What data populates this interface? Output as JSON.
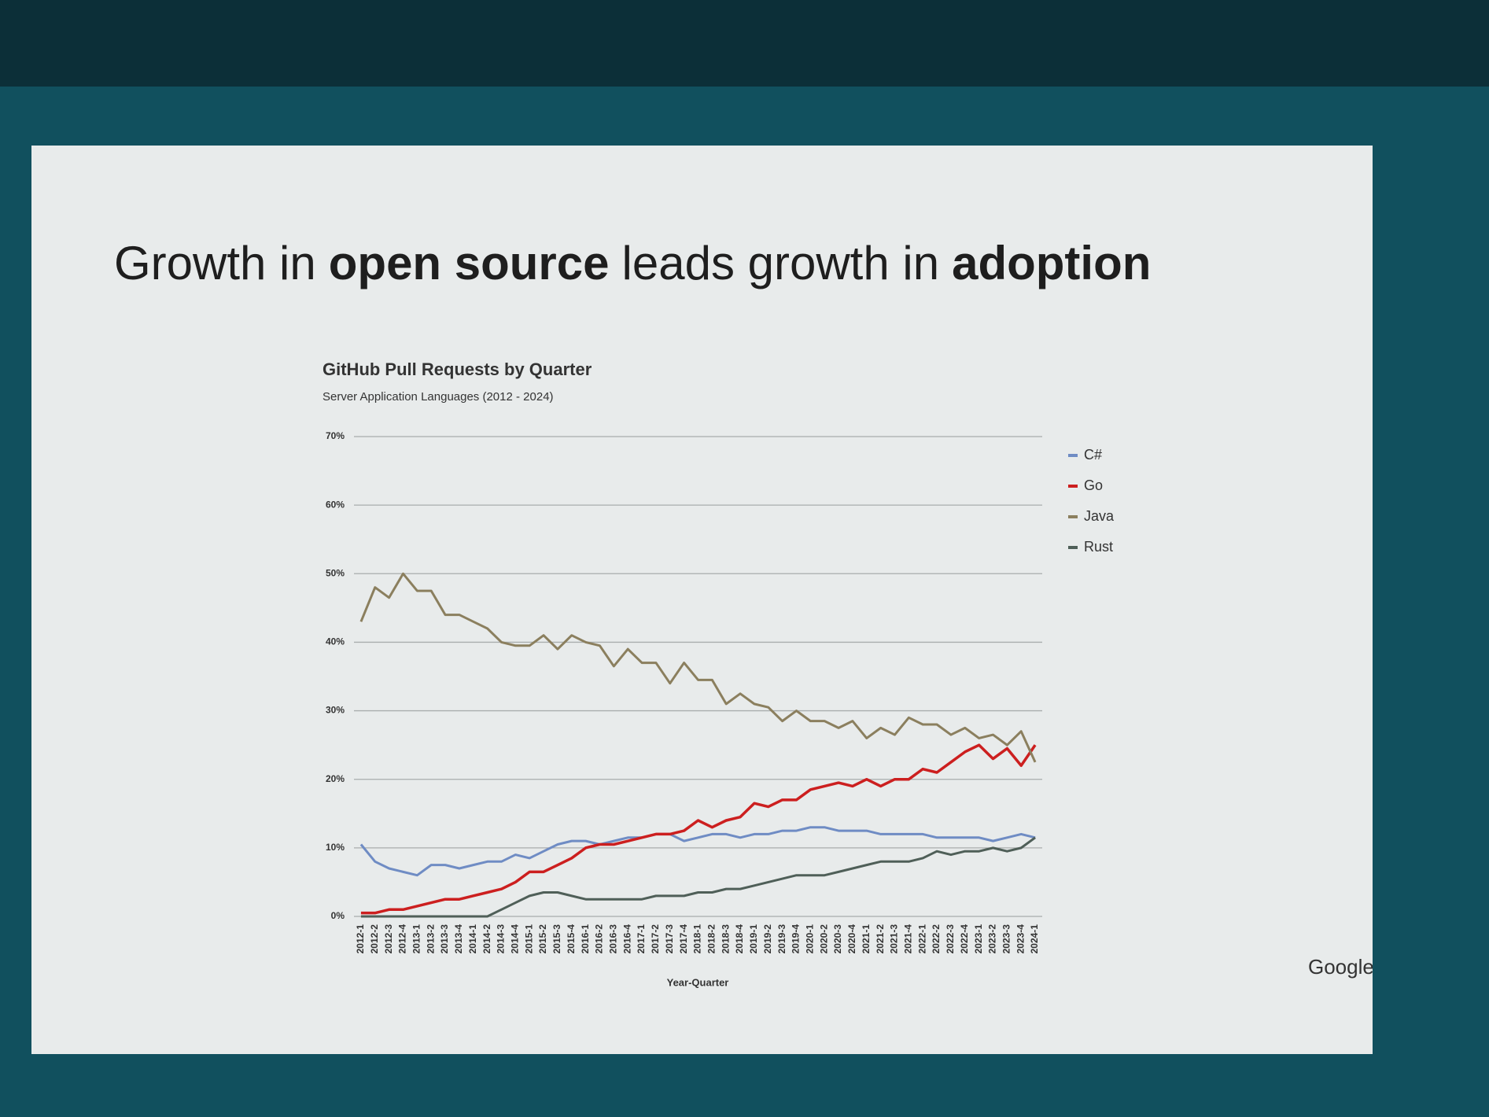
{
  "slide": {
    "title_parts": [
      {
        "text": "Growth in",
        "bold": false
      },
      {
        "text": "open source",
        "bold": true
      },
      {
        "text": "leads growth in",
        "bold": false
      },
      {
        "text": "adoption",
        "bold": true
      }
    ],
    "logo": "Google"
  },
  "chart_data": {
    "type": "line",
    "title": "GitHub Pull Requests by Quarter",
    "subtitle": "Server Application Languages (2012 - 2024)",
    "x_label": "Year-Quarter",
    "categories": [
      "2012-1",
      "2012-2",
      "2012-3",
      "2012-4",
      "2013-1",
      "2013-2",
      "2013-3",
      "2013-4",
      "2014-1",
      "2014-2",
      "2014-3",
      "2014-4",
      "2015-1",
      "2015-2",
      "2015-3",
      "2015-4",
      "2016-1",
      "2016-2",
      "2016-3",
      "2016-4",
      "2017-1",
      "2017-2",
      "2017-3",
      "2017-4",
      "2018-1",
      "2018-2",
      "2018-3",
      "2018-4",
      "2019-1",
      "2019-2",
      "2019-3",
      "2019-4",
      "2020-1",
      "2020-2",
      "2020-3",
      "2020-4",
      "2021-1",
      "2021-2",
      "2021-3",
      "2021-4",
      "2022-1",
      "2022-2",
      "2022-3",
      "2022-4",
      "2023-1",
      "2023-2",
      "2023-3",
      "2023-4",
      "2024-1"
    ],
    "series": [
      {
        "name": "C#",
        "color": "#6f8cc4",
        "values": [
          10.5,
          8,
          7,
          6.5,
          6,
          7.5,
          7.5,
          7,
          7.5,
          8,
          8,
          9,
          8.5,
          9.5,
          10.5,
          11,
          11,
          10.5,
          11,
          11.5,
          11.5,
          12,
          12,
          11,
          11.5,
          12,
          12,
          11.5,
          12,
          12,
          12.5,
          12.5,
          13,
          13,
          12.5,
          12.5,
          12.5,
          12,
          12,
          12,
          12,
          11.5,
          11.5,
          11.5,
          11.5,
          11,
          11.5,
          12,
          11.5
        ]
      },
      {
        "name": "Go",
        "color": "#cc1f1f",
        "values": [
          0.5,
          0.5,
          1,
          1,
          1.5,
          2,
          2.5,
          2.5,
          3,
          3.5,
          4,
          5,
          6.5,
          6.5,
          7.5,
          8.5,
          10,
          10.5,
          10.5,
          11,
          11.5,
          12,
          12,
          12.5,
          14,
          13,
          14,
          14.5,
          16.5,
          16,
          17,
          17,
          18.5,
          19,
          19.5,
          19,
          20,
          19,
          20,
          20,
          21.5,
          21,
          22.5,
          24,
          25,
          23,
          24.5,
          22,
          25
        ]
      },
      {
        "name": "Java",
        "color": "#8b7f5e",
        "values": [
          43,
          48,
          46.5,
          50,
          47.5,
          47.5,
          44,
          44,
          43,
          42,
          40,
          39.5,
          39.5,
          41,
          39,
          41,
          40,
          39.5,
          36.5,
          39,
          37,
          37,
          34,
          37,
          34.5,
          34.5,
          31,
          32.5,
          31,
          30.5,
          28.5,
          30,
          28.5,
          28.5,
          27.5,
          28.5,
          26,
          27.5,
          26.5,
          29,
          28,
          28,
          26.5,
          27.5,
          26,
          26.5,
          25,
          27,
          22.5
        ]
      },
      {
        "name": "Rust",
        "color": "#4f5f58",
        "values": [
          0,
          0,
          0,
          0,
          0,
          0,
          0,
          0,
          0,
          0,
          1,
          2,
          3,
          3.5,
          3.5,
          3,
          2.5,
          2.5,
          2.5,
          2.5,
          2.5,
          3,
          3,
          3,
          3.5,
          3.5,
          4,
          4,
          4.5,
          5,
          5.5,
          6,
          6,
          6,
          6.5,
          7,
          7.5,
          8,
          8,
          8,
          8.5,
          9.5,
          9,
          9.5,
          9.5,
          10,
          9.5,
          10,
          11.5
        ]
      }
    ],
    "ylim": [
      0,
      70
    ],
    "yticks": [
      {
        "value": 0,
        "label": "0%"
      },
      {
        "value": 10,
        "label": "10%"
      },
      {
        "value": 20,
        "label": "20%"
      },
      {
        "value": 30,
        "label": "30%"
      },
      {
        "value": 40,
        "label": "40%"
      },
      {
        "value": 50,
        "label": "50%"
      },
      {
        "value": 60,
        "label": "60%"
      },
      {
        "value": 70,
        "label": "70%"
      }
    ],
    "grid": true,
    "legend": "right"
  }
}
